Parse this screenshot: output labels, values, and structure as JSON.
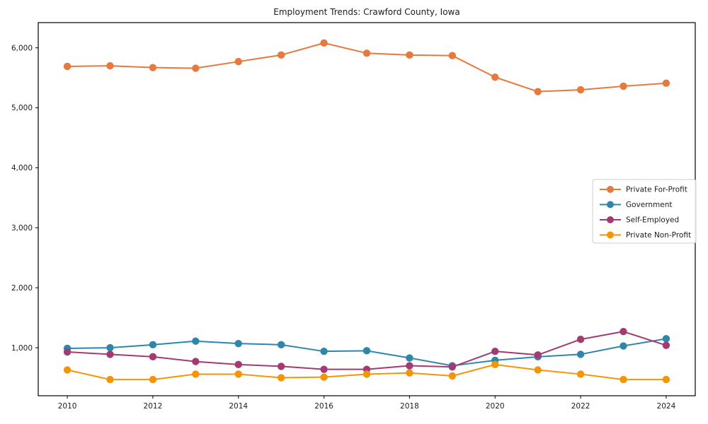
{
  "figure": {
    "title": "Employment Trends: Crawford County, Iowa"
  },
  "chart_data": {
    "type": "line",
    "title": "Employment Trends: Crawford County, Iowa",
    "xlabel": "",
    "ylabel": "",
    "x": [
      2010,
      2011,
      2012,
      2013,
      2014,
      2015,
      2016,
      2017,
      2018,
      2019,
      2020,
      2021,
      2022,
      2023,
      2024
    ],
    "series": [
      {
        "name": "Private For-Profit",
        "color": "#E5793E",
        "values": [
          5690,
          5700,
          5670,
          5660,
          5770,
          5880,
          6080,
          5910,
          5880,
          5870,
          5510,
          5270,
          5300,
          5360,
          5410
        ]
      },
      {
        "name": "Government",
        "color": "#2E86AB",
        "values": [
          990,
          1000,
          1050,
          1110,
          1070,
          1050,
          940,
          950,
          830,
          700,
          790,
          850,
          890,
          1030,
          1150
        ]
      },
      {
        "name": "Self-Employed",
        "color": "#A23B72",
        "values": [
          930,
          890,
          850,
          770,
          720,
          690,
          640,
          640,
          700,
          680,
          940,
          880,
          1140,
          1270,
          1040
        ]
      },
      {
        "name": "Private Non-Profit",
        "color": "#F49506",
        "values": [
          630,
          470,
          470,
          560,
          560,
          500,
          510,
          560,
          580,
          530,
          720,
          630,
          560,
          470,
          470
        ]
      }
    ],
    "xticks": [
      2010,
      2012,
      2014,
      2016,
      2018,
      2020,
      2022,
      2024
    ],
    "yticks": [
      {
        "value": 1000,
        "label": "1,000"
      },
      {
        "value": 2000,
        "label": "2,000"
      },
      {
        "value": 3000,
        "label": "3,000"
      },
      {
        "value": 4000,
        "label": "4,000"
      },
      {
        "value": 5000,
        "label": "5,000"
      },
      {
        "value": 6000,
        "label": "6,000"
      }
    ],
    "xlim": [
      2009.32,
      2024.68
    ],
    "ylim": [
      200,
      6420
    ],
    "grid": false,
    "legend": {
      "position": "right-center",
      "entries": [
        "Private For-Profit",
        "Government",
        "Self-Employed",
        "Private Non-Profit"
      ]
    },
    "axis_color": "#000000",
    "text_color": "#1c1c1c",
    "background": "#ffffff"
  }
}
